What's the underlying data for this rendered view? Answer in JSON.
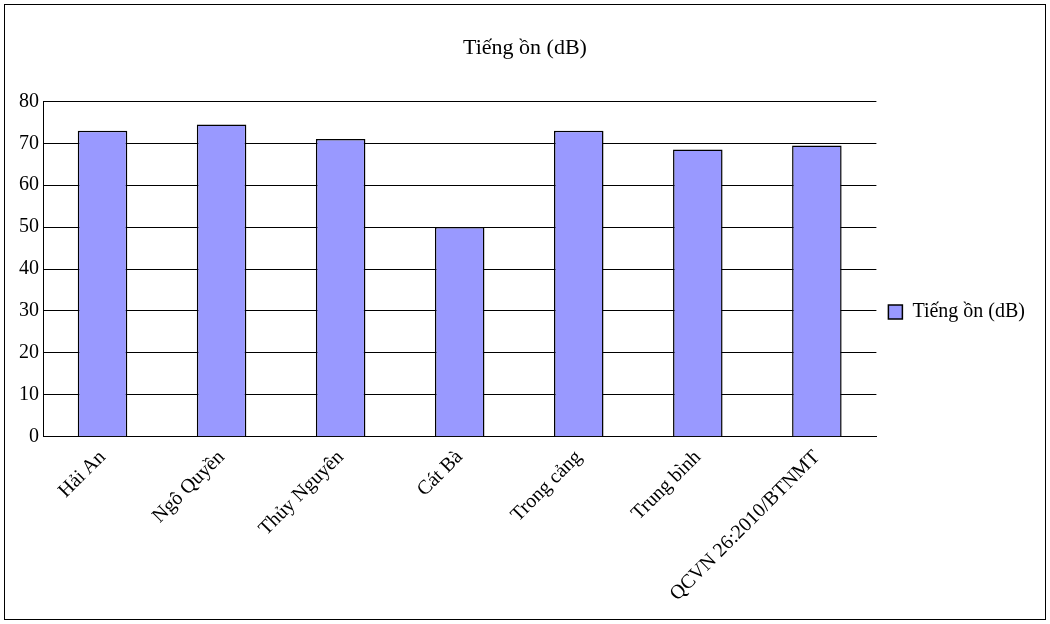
{
  "chart_data": {
    "type": "bar",
    "title": "Tiếng ồn (dB)",
    "categories": [
      "Hải An",
      "Ngô Quyền",
      "Thủy Nguyên",
      "Cát Bà",
      "Trong cảng",
      "Trung bình",
      "QCVN 26:2010/BTNMT"
    ],
    "series": [
      {
        "name": "Tiếng ồn (dB)",
        "color": "#9999ff",
        "values": [
          73,
          74.5,
          71,
          50,
          73,
          68.5,
          69.5
        ]
      }
    ],
    "ylim": [
      0,
      80
    ],
    "yticks": [
      0,
      10,
      20,
      30,
      40,
      50,
      60,
      70,
      80
    ],
    "grid": "y",
    "legend": "right"
  }
}
